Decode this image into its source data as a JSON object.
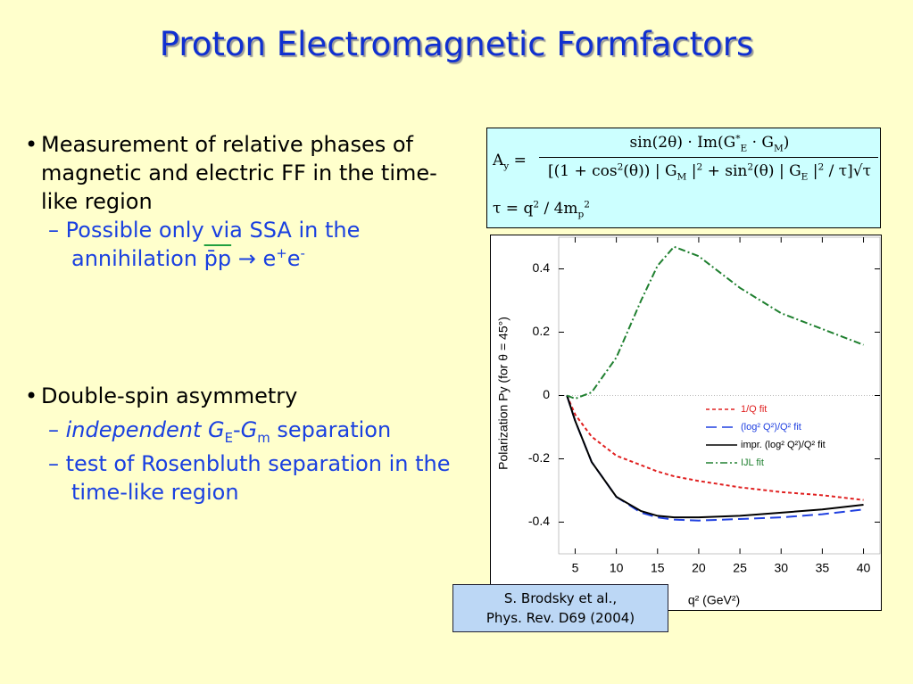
{
  "title": "Proton Electromagnetic Formfactors",
  "bullets": [
    {
      "text": "Measurement of relative phases of magnetic and electric FF in the time-like region",
      "sub": [
        [
          "Possible only via SSA in the annihilation ",
          "p̄p",
          " → e",
          "+",
          "e",
          "-"
        ]
      ]
    },
    {
      "text": "Double-spin asymmetry",
      "sub": [
        [
          "independent ",
          "G",
          "E",
          "-",
          "G",
          "m",
          " separation"
        ],
        [
          "test of Rosenbluth separation in the time-like region"
        ]
      ]
    }
  ],
  "formula": {
    "lhs": "A",
    "lhs_sub": "y",
    "eq": "=",
    "numerator": [
      "sin(2θ) · Im(G",
      "*",
      "E",
      " · G",
      "M",
      ")"
    ],
    "denominator": [
      "[(1 + cos",
      "2",
      "(θ)) | G",
      "M",
      " |",
      "2",
      " + sin",
      "2",
      "(θ) | G",
      "E",
      " |",
      "2",
      " / τ]√τ"
    ],
    "tau": [
      "τ = q",
      "2",
      " / 4m",
      "p",
      "2"
    ]
  },
  "citation": [
    "S. Brodsky et al.,",
    "Phys. Rev. D69 (2004)"
  ],
  "chart_data": {
    "type": "line",
    "x": [
      4,
      5,
      7,
      10,
      13,
      15,
      17,
      20,
      25,
      30,
      35,
      40
    ],
    "series": [
      {
        "name": "1/Q fit",
        "color": "#e02020",
        "dash": "4,3",
        "values": [
          0,
          -0.06,
          -0.13,
          -0.19,
          -0.22,
          -0.24,
          -0.255,
          -0.27,
          -0.29,
          -0.305,
          -0.315,
          -0.33
        ]
      },
      {
        "name": "(log² Q²)/Q² fit",
        "color": "#2040e0",
        "dash": "12,6",
        "values": [
          0,
          -0.08,
          -0.21,
          -0.32,
          -0.37,
          -0.385,
          -0.392,
          -0.395,
          -0.39,
          -0.385,
          -0.375,
          -0.36
        ]
      },
      {
        "name": "impr. (log² Q²)/Q² fit",
        "color": "#000000",
        "dash": "none",
        "values": [
          0,
          -0.08,
          -0.21,
          -0.32,
          -0.365,
          -0.38,
          -0.385,
          -0.385,
          -0.38,
          -0.37,
          -0.36,
          -0.345
        ]
      },
      {
        "name": "IJL fit",
        "color": "#208030",
        "dash": "8,3,2,3",
        "values": [
          0,
          -0.01,
          0.01,
          0.12,
          0.3,
          0.41,
          0.47,
          0.44,
          0.34,
          0.26,
          0.21,
          0.16
        ]
      }
    ],
    "xlim": [
      3,
      42
    ],
    "xticks": [
      5,
      10,
      15,
      20,
      25,
      30,
      35,
      40
    ],
    "ylim": [
      -0.5,
      0.5
    ],
    "yticks": [
      -0.4,
      -0.2,
      0,
      0.2,
      0.4
    ],
    "xlabel": "q² (GeV²)",
    "ylabel": "Polarization  Py  (for θ = 45°)"
  }
}
